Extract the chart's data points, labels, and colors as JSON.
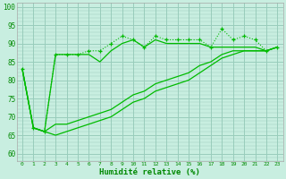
{
  "x": [
    0,
    1,
    2,
    3,
    4,
    5,
    6,
    7,
    8,
    9,
    10,
    11,
    12,
    13,
    14,
    15,
    16,
    17,
    18,
    19,
    20,
    21,
    22,
    23
  ],
  "series1": [
    83,
    67,
    66,
    87,
    87,
    87,
    88,
    88,
    90,
    92,
    91,
    89,
    92,
    91,
    91,
    91,
    91,
    89,
    94,
    91,
    92,
    91,
    88,
    89
  ],
  "series2": [
    83,
    67,
    66,
    87,
    87,
    87,
    87,
    85,
    88,
    90,
    91,
    89,
    91,
    90,
    90,
    90,
    90,
    89,
    89,
    89,
    89,
    89,
    88,
    89
  ],
  "series3_a": [
    83,
    67,
    66,
    68,
    68,
    69,
    70,
    71,
    72,
    74,
    76,
    77,
    79,
    80,
    81,
    82,
    84,
    85,
    87,
    88,
    88,
    88,
    88,
    89
  ],
  "series3_b": [
    83,
    67,
    66,
    65,
    66,
    67,
    68,
    69,
    70,
    72,
    74,
    75,
    77,
    78,
    79,
    80,
    82,
    84,
    86,
    87,
    88,
    88,
    88,
    89
  ],
  "line_color": "#00bb00",
  "bg_color": "#c8eee0",
  "grid_color": "#99ccbb",
  "xlabel": "Humidité relative (%)",
  "xlabel_color": "#008800",
  "tick_color": "#008800",
  "xlim": [
    -0.5,
    23.5
  ],
  "ylim": [
    58,
    101
  ],
  "yticks": [
    60,
    65,
    70,
    75,
    80,
    85,
    90,
    95,
    100
  ],
  "xticks": [
    0,
    1,
    2,
    3,
    4,
    5,
    6,
    7,
    8,
    9,
    10,
    11,
    12,
    13,
    14,
    15,
    16,
    17,
    18,
    19,
    20,
    21,
    22,
    23
  ]
}
